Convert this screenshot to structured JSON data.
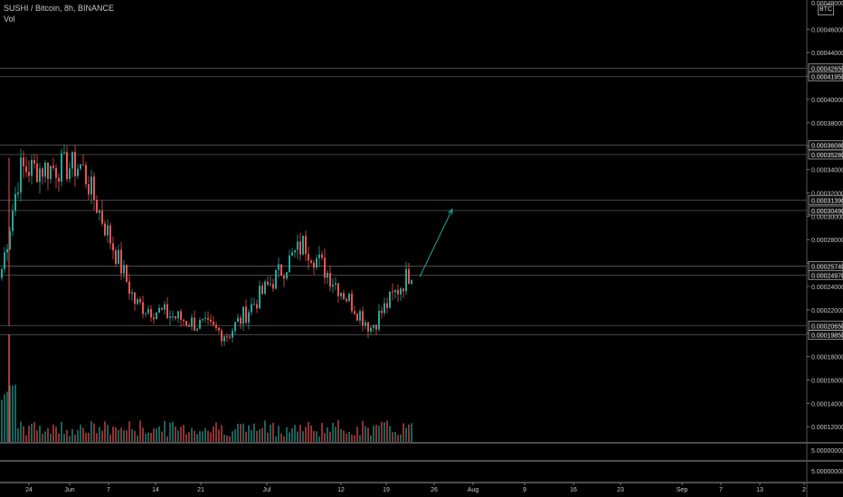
{
  "legend": {
    "symbol_line": "SUSHI / Bitcoin, 8h, BINANCE",
    "volume_label": "Vol"
  },
  "currency_badge": "BTC",
  "colors": {
    "up": "#26a69a",
    "down": "#ef5350",
    "background": "#000000",
    "grid": "#2a2a2a",
    "level_line": "#5a5a5a",
    "arrow": "#26a69a"
  },
  "chart_data": {
    "type": "candlestick",
    "timeframe": "8h",
    "price_axis_ticks": [
      "0.00046000",
      "0.00044000",
      "0.00042000",
      "0.00040000",
      "0.00038000",
      "0.00036000",
      "0.00034000",
      "0.00032000",
      "0.00030000",
      "0.00028000",
      "0.00026000",
      "0.00024000",
      "0.00022000",
      "0.00020000",
      "0.00018000",
      "0.00016000",
      "0.00014000",
      "0.00012000"
    ],
    "top_partial_label": "0.00048000",
    "ylim": [
      0.000107,
      0.000485
    ],
    "level_labels": [
      "0.00042650",
      "0.00041950",
      "0.00036080",
      "0.00035280",
      "0.00031390",
      "0.00030490",
      "0.00025740",
      "0.00024970",
      "0.00020650",
      "0.00019850"
    ],
    "level_values": [
      0.0004265,
      0.0004195,
      0.0003608,
      0.0003528,
      0.0003139,
      0.0003049,
      0.0002574,
      0.0002497,
      0.0002065,
      0.0001985
    ],
    "volume_axis_labels": [
      "5.00000000",
      "5.00000000"
    ],
    "x_axis_labels": [
      "24",
      "Jun",
      "7",
      "14",
      "21",
      "Jul",
      "12",
      "19",
      "26",
      "Aug",
      "9",
      "16",
      "23",
      "Sep",
      "7",
      "13",
      "2"
    ],
    "key_points": [
      {
        "date": "May 24",
        "price": 0.000255
      },
      {
        "date": "May 25",
        "price": 0.00034
      },
      {
        "date": "Jun 5",
        "price": 0.000343
      },
      {
        "date": "Jun 11",
        "price": 0.000225
      },
      {
        "date": "Jun 25",
        "price": 0.000199
      },
      {
        "date": "Jul 6",
        "price": 0.000277
      },
      {
        "date": "Jul 17",
        "price": 0.000205
      },
      {
        "date": "Jul 22",
        "price": 0.000255
      }
    ],
    "projection_arrow": {
      "from_price": 0.000248,
      "to_price": 0.000306
    }
  }
}
